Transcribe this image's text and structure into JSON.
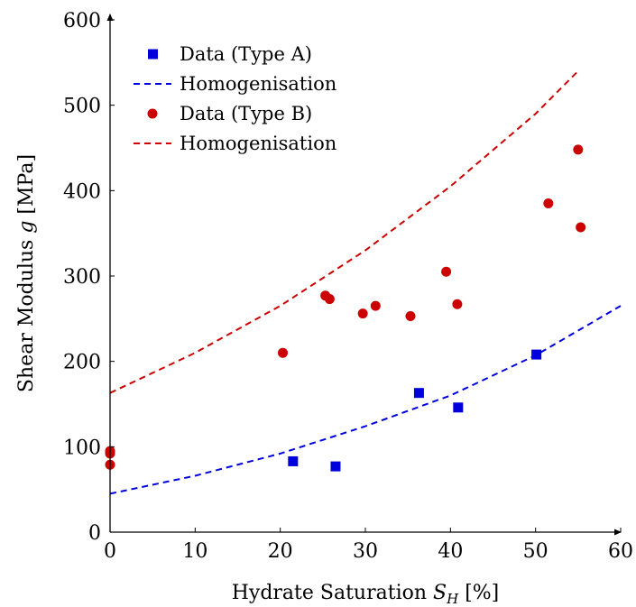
{
  "chart_data": {
    "type": "scatter",
    "xlabel": "Hydrate Saturation S_H [%]",
    "ylabel": "Shear Modulus g [MPa]",
    "xlim": [
      0,
      60
    ],
    "ylim": [
      0,
      600
    ],
    "xticks": [
      0,
      10,
      20,
      30,
      40,
      50,
      60
    ],
    "yticks": [
      0,
      100,
      200,
      300,
      400,
      500,
      600
    ],
    "grid": false,
    "legend_position": "top-left",
    "colors": {
      "type_a": "#0000dd",
      "type_b": "#cc0000"
    },
    "series": [
      {
        "name": "Data (Type A)",
        "kind": "scatter",
        "marker": "square",
        "color": "#0000dd",
        "points": [
          [
            21.5,
            83
          ],
          [
            26.5,
            77
          ],
          [
            36.3,
            163
          ],
          [
            40.9,
            146
          ],
          [
            50.1,
            208
          ]
        ]
      },
      {
        "name": "Homogenisation",
        "kind": "dashed-line",
        "color": "#0000dd",
        "points": [
          [
            0,
            45
          ],
          [
            10,
            66
          ],
          [
            20,
            92
          ],
          [
            30,
            124
          ],
          [
            40,
            160
          ],
          [
            50,
            207
          ],
          [
            60,
            265
          ]
        ]
      },
      {
        "name": "Data (Type B)",
        "kind": "scatter",
        "marker": "circle",
        "color": "#cc0000",
        "points": [
          [
            0,
            95
          ],
          [
            0,
            92
          ],
          [
            0,
            79
          ],
          [
            20.3,
            210
          ],
          [
            25.3,
            277
          ],
          [
            25.8,
            273
          ],
          [
            29.7,
            256
          ],
          [
            31.2,
            265
          ],
          [
            35.3,
            253
          ],
          [
            39.5,
            305
          ],
          [
            40.8,
            267
          ],
          [
            51.5,
            385
          ],
          [
            55.0,
            448
          ],
          [
            55.3,
            357
          ]
        ]
      },
      {
        "name": "Homogenisation",
        "kind": "dashed-line",
        "color": "#cc0000",
        "points": [
          [
            0,
            163
          ],
          [
            10,
            210
          ],
          [
            20,
            265
          ],
          [
            30,
            330
          ],
          [
            40,
            405
          ],
          [
            50,
            490
          ],
          [
            55,
            540
          ]
        ]
      }
    ]
  }
}
